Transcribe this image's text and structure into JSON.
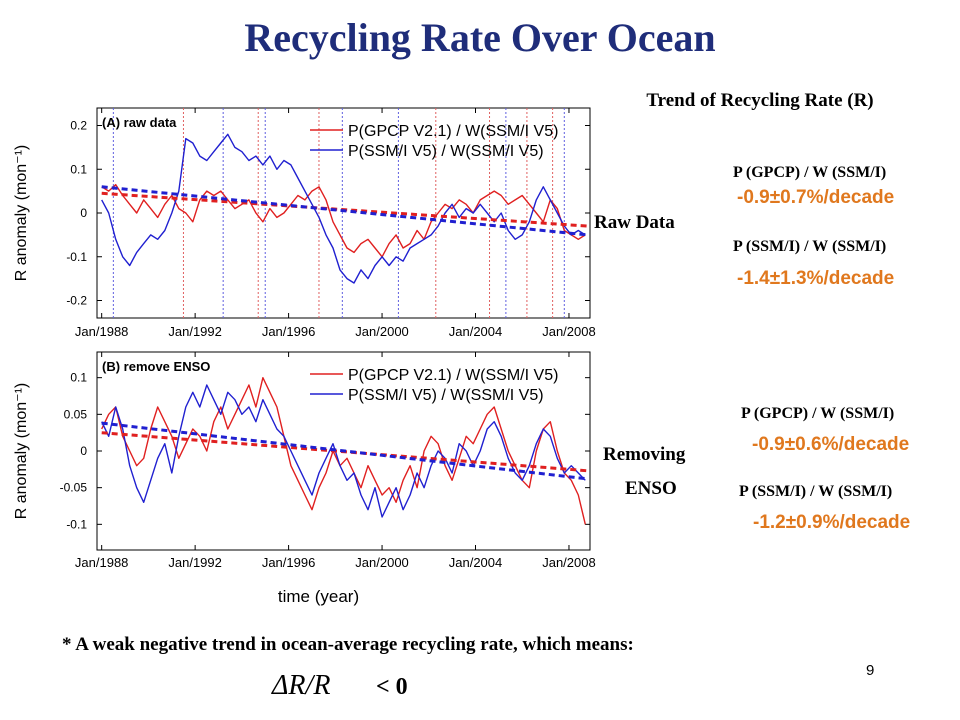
{
  "slide": {
    "title": "Recycling Rate Over Ocean",
    "page_number": "9",
    "footer_note": "* A weak negative trend in ocean-average recycling rate, which means:",
    "formula": "ΔR/R",
    "formula_relation": "< 0"
  },
  "annotations": {
    "trend_heading": "Trend of Recycling Rate (R)",
    "raw_label": "Raw Data",
    "enso_label_1": "Removing",
    "enso_label_2": "ENSO",
    "raw_gpcp_formula": "P (GPCP)  / W (SSM/I)",
    "raw_gpcp_rate": "-0.9±0.7%/decade",
    "raw_ssmi_formula": "P (SSM/I)  / W (SSM/I)",
    "raw_ssmi_rate": "-1.4±1.3%/decade",
    "enso_gpcp_formula": "P (GPCP)  / W (SSM/I)",
    "enso_gpcp_rate": "-0.9±0.6%/decade",
    "enso_ssmi_formula": "P (SSM/I)  / W (SSM/I)",
    "enso_ssmi_rate": "-1.2±0.9%/decade"
  },
  "colors": {
    "title": "#1f2d7a",
    "rate_text": "#e0781e",
    "series_gpcp": "#e02020",
    "series_ssmi": "#2020d0",
    "vline_red": "#e06060",
    "vline_blue": "#6060e0"
  },
  "chart_data": [
    {
      "type": "line",
      "title": "(A) raw data",
      "xlabel": "",
      "ylabel": "R anomaly (mon⁻¹)",
      "xlim": [
        1987.8,
        2008.9
      ],
      "ylim": [
        -0.24,
        0.24
      ],
      "yticks": [
        0.2,
        0.1,
        0,
        -0.1,
        -0.2
      ],
      "ytick_labels": [
        "0.2",
        "0.1",
        "0",
        "-0.1",
        "-0.2"
      ],
      "xticks": [
        1988,
        1992,
        1996,
        2000,
        2004,
        2008
      ],
      "xtick_labels": [
        "Jan/1988",
        "Jan/1992",
        "Jan/1996",
        "Jan/2000",
        "Jan/2004",
        "Jan/2008"
      ],
      "legend_position": "top-right",
      "red_vlines": [
        1991.5,
        1994.7,
        1997.3,
        2002.3,
        2004.6,
        2006.2,
        2007.3
      ],
      "blue_vlines": [
        1988.5,
        1993.2,
        1995.0,
        1998.3,
        2000.7,
        2005.3,
        2007.8
      ],
      "series": [
        {
          "name": "P(GPCP V2.1) / W(SSM/I V5)",
          "color": "#e02020",
          "x": [
            1988.0,
            1988.3,
            1988.6,
            1988.9,
            1989.2,
            1989.5,
            1989.8,
            1990.1,
            1990.4,
            1990.7,
            1991.0,
            1991.3,
            1991.6,
            1991.9,
            1992.2,
            1992.5,
            1992.8,
            1993.1,
            1993.4,
            1993.7,
            1994.0,
            1994.3,
            1994.6,
            1994.9,
            1995.2,
            1995.5,
            1995.8,
            1996.1,
            1996.4,
            1996.7,
            1997.0,
            1997.3,
            1997.6,
            1997.9,
            1998.2,
            1998.5,
            1998.8,
            1999.1,
            1999.4,
            1999.7,
            2000.0,
            2000.3,
            2000.6,
            2000.9,
            2001.2,
            2001.5,
            2001.8,
            2002.1,
            2002.4,
            2002.7,
            2003.0,
            2003.3,
            2003.6,
            2003.9,
            2004.2,
            2004.5,
            2004.8,
            2005.1,
            2005.4,
            2005.7,
            2006.0,
            2006.3,
            2006.6,
            2006.9,
            2007.2,
            2007.5,
            2007.8,
            2008.1,
            2008.4,
            2008.7
          ],
          "values": [
            0.06,
            0.05,
            0.065,
            0.04,
            0.02,
            0.0,
            0.03,
            0.01,
            -0.01,
            0.02,
            0.04,
            0.01,
            0.0,
            -0.02,
            0.03,
            0.05,
            0.04,
            0.05,
            0.03,
            0.01,
            0.02,
            0.03,
            0.0,
            -0.02,
            0.01,
            -0.01,
            0.0,
            0.02,
            0.04,
            0.03,
            0.05,
            0.06,
            0.03,
            -0.02,
            -0.05,
            -0.08,
            -0.09,
            -0.07,
            -0.06,
            -0.08,
            -0.1,
            -0.07,
            -0.05,
            -0.08,
            -0.07,
            -0.04,
            -0.06,
            -0.02,
            0.0,
            0.02,
            0.01,
            0.03,
            0.02,
            0.0,
            0.03,
            0.04,
            0.05,
            0.04,
            0.02,
            0.03,
            0.04,
            0.02,
            0.0,
            -0.02,
            0.03,
            0.01,
            -0.04,
            -0.05,
            -0.06,
            -0.05
          ]
        },
        {
          "name": "P(SSM/I V5) / W(SSM/I V5)",
          "color": "#2020d0",
          "x": [
            1988.0,
            1988.3,
            1988.6,
            1988.9,
            1989.2,
            1989.5,
            1989.8,
            1990.1,
            1990.4,
            1990.7,
            1991.0,
            1991.3,
            1991.6,
            1991.9,
            1992.2,
            1992.5,
            1992.8,
            1993.1,
            1993.4,
            1993.7,
            1994.0,
            1994.3,
            1994.6,
            1994.9,
            1995.2,
            1995.5,
            1995.8,
            1996.1,
            1996.4,
            1996.7,
            1997.0,
            1997.3,
            1997.6,
            1997.9,
            1998.2,
            1998.5,
            1998.8,
            1999.1,
            1999.4,
            1999.7,
            2000.0,
            2000.3,
            2000.6,
            2000.9,
            2001.2,
            2001.5,
            2001.8,
            2002.1,
            2002.4,
            2002.7,
            2003.0,
            2003.3,
            2003.6,
            2003.9,
            2004.2,
            2004.5,
            2004.8,
            2005.1,
            2005.4,
            2005.7,
            2006.0,
            2006.3,
            2006.6,
            2006.9,
            2007.2,
            2007.5,
            2007.8,
            2008.1,
            2008.4,
            2008.7
          ],
          "values": [
            0.03,
            0.0,
            -0.06,
            -0.1,
            -0.12,
            -0.09,
            -0.07,
            -0.05,
            -0.06,
            -0.04,
            0.0,
            0.05,
            0.17,
            0.16,
            0.13,
            0.12,
            0.14,
            0.16,
            0.18,
            0.15,
            0.14,
            0.12,
            0.13,
            0.11,
            0.13,
            0.1,
            0.12,
            0.11,
            0.08,
            0.05,
            0.02,
            -0.01,
            -0.05,
            -0.08,
            -0.13,
            -0.15,
            -0.16,
            -0.13,
            -0.15,
            -0.12,
            -0.1,
            -0.12,
            -0.1,
            -0.11,
            -0.08,
            -0.07,
            -0.06,
            -0.05,
            -0.03,
            0.0,
            0.02,
            -0.01,
            0.01,
            0.0,
            0.02,
            0.0,
            -0.02,
            0.0,
            -0.04,
            -0.06,
            -0.05,
            -0.02,
            0.03,
            0.06,
            0.03,
            0.0,
            -0.03,
            -0.05,
            -0.04,
            -0.05
          ]
        },
        {
          "name": "",
          "color": "#e02020",
          "style": "dashed-trend",
          "x": [
            1988.0,
            2008.8
          ],
          "values": [
            0.045,
            -0.03
          ]
        },
        {
          "name": "",
          "color": "#2020d0",
          "style": "dashed-trend",
          "x": [
            1988.0,
            2008.8
          ],
          "values": [
            0.06,
            -0.05
          ]
        }
      ]
    },
    {
      "type": "line",
      "title": "(B) remove ENSO",
      "xlabel": "time (year)",
      "ylabel": "R anomaly (mon⁻¹)",
      "xlim": [
        1987.8,
        2008.9
      ],
      "ylim": [
        -0.135,
        0.135
      ],
      "yticks": [
        0.1,
        0.05,
        0,
        -0.05,
        -0.1
      ],
      "ytick_labels": [
        "0.1",
        "0.05",
        "0",
        "-0.05",
        "-0.1"
      ],
      "xticks": [
        1988,
        1992,
        1996,
        2000,
        2004,
        2008
      ],
      "xtick_labels": [
        "Jan/1988",
        "Jan/1992",
        "Jan/1996",
        "Jan/2000",
        "Jan/2004",
        "Jan/2008"
      ],
      "legend_position": "top-right",
      "red_vlines": [],
      "blue_vlines": [],
      "series": [
        {
          "name": "P(GPCP V2.1) / W(SSM/I V5)",
          "color": "#e02020",
          "x": [
            1988.0,
            1988.3,
            1988.6,
            1988.9,
            1989.2,
            1989.5,
            1989.8,
            1990.1,
            1990.4,
            1990.7,
            1991.0,
            1991.3,
            1991.6,
            1991.9,
            1992.2,
            1992.5,
            1992.8,
            1993.1,
            1993.4,
            1993.7,
            1994.0,
            1994.3,
            1994.6,
            1994.9,
            1995.2,
            1995.5,
            1995.8,
            1996.1,
            1996.4,
            1996.7,
            1997.0,
            1997.3,
            1997.6,
            1997.9,
            1998.2,
            1998.5,
            1998.8,
            1999.1,
            1999.4,
            1999.7,
            2000.0,
            2000.3,
            2000.6,
            2000.9,
            2001.2,
            2001.5,
            2001.8,
            2002.1,
            2002.4,
            2002.7,
            2003.0,
            2003.3,
            2003.6,
            2003.9,
            2004.2,
            2004.5,
            2004.8,
            2005.1,
            2005.4,
            2005.7,
            2006.0,
            2006.3,
            2006.6,
            2006.9,
            2007.2,
            2007.5,
            2007.8,
            2008.1,
            2008.4,
            2008.7
          ],
          "values": [
            0.03,
            0.05,
            0.06,
            0.02,
            0.0,
            -0.02,
            -0.01,
            0.03,
            0.06,
            0.04,
            0.02,
            -0.01,
            0.01,
            0.03,
            0.02,
            0.0,
            0.04,
            0.06,
            0.03,
            0.05,
            0.07,
            0.09,
            0.06,
            0.1,
            0.08,
            0.06,
            0.02,
            -0.02,
            -0.04,
            -0.06,
            -0.08,
            -0.05,
            -0.03,
            0.0,
            -0.02,
            -0.01,
            -0.03,
            -0.05,
            -0.02,
            -0.04,
            -0.06,
            -0.05,
            -0.07,
            -0.04,
            -0.02,
            -0.05,
            0.0,
            0.02,
            0.01,
            -0.02,
            -0.04,
            -0.01,
            0.02,
            0.01,
            0.03,
            0.05,
            0.06,
            0.03,
            0.0,
            -0.02,
            -0.04,
            -0.05,
            0.0,
            0.03,
            0.04,
            0.0,
            -0.03,
            -0.04,
            -0.06,
            -0.1
          ]
        },
        {
          "name": "P(SSM/I V5) / W(SSM/I V5)",
          "color": "#2020d0",
          "x": [
            1988.0,
            1988.3,
            1988.6,
            1988.9,
            1989.2,
            1989.5,
            1989.8,
            1990.1,
            1990.4,
            1990.7,
            1991.0,
            1991.3,
            1991.6,
            1991.9,
            1992.2,
            1992.5,
            1992.8,
            1993.1,
            1993.4,
            1993.7,
            1994.0,
            1994.3,
            1994.6,
            1994.9,
            1995.2,
            1995.5,
            1995.8,
            1996.1,
            1996.4,
            1996.7,
            1997.0,
            1997.3,
            1997.6,
            1997.9,
            1998.2,
            1998.5,
            1998.8,
            1999.1,
            1999.4,
            1999.7,
            2000.0,
            2000.3,
            2000.6,
            2000.9,
            2001.2,
            2001.5,
            2001.8,
            2002.1,
            2002.4,
            2002.7,
            2003.0,
            2003.3,
            2003.6,
            2003.9,
            2004.2,
            2004.5,
            2004.8,
            2005.1,
            2005.4,
            2005.7,
            2006.0,
            2006.3,
            2006.6,
            2006.9,
            2007.2,
            2007.5,
            2007.8,
            2008.1,
            2008.4,
            2008.7
          ],
          "values": [
            0.04,
            0.02,
            0.06,
            0.03,
            -0.02,
            -0.05,
            -0.07,
            -0.04,
            -0.01,
            0.01,
            -0.03,
            0.02,
            0.06,
            0.08,
            0.06,
            0.09,
            0.07,
            0.05,
            0.08,
            0.07,
            0.05,
            0.06,
            0.04,
            0.07,
            0.05,
            0.03,
            0.02,
            0.0,
            -0.02,
            -0.04,
            -0.06,
            -0.03,
            -0.01,
            0.01,
            -0.02,
            -0.04,
            -0.03,
            -0.06,
            -0.08,
            -0.05,
            -0.09,
            -0.07,
            -0.05,
            -0.08,
            -0.06,
            -0.03,
            -0.05,
            -0.02,
            0.0,
            -0.01,
            -0.03,
            0.01,
            0.0,
            -0.02,
            0.0,
            0.03,
            0.04,
            0.02,
            -0.01,
            -0.03,
            -0.04,
            -0.02,
            0.01,
            0.03,
            0.02,
            -0.01,
            -0.03,
            -0.02,
            -0.03,
            -0.04
          ]
        },
        {
          "name": "",
          "color": "#e02020",
          "style": "dashed-trend",
          "x": [
            1988.0,
            2008.8
          ],
          "values": [
            0.025,
            -0.027
          ]
        },
        {
          "name": "",
          "color": "#2020d0",
          "style": "dashed-trend",
          "x": [
            1988.0,
            2008.8
          ],
          "values": [
            0.038,
            -0.038
          ]
        }
      ]
    }
  ]
}
